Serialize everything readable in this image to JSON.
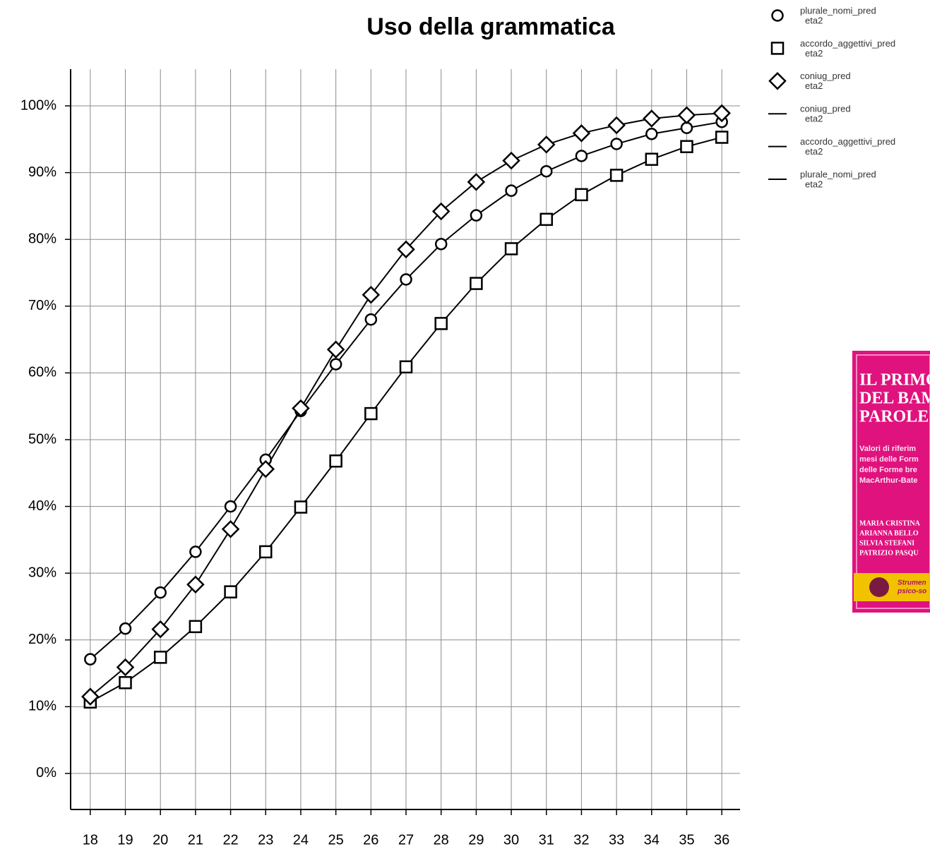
{
  "chart_data": {
    "type": "line",
    "title": "Uso della grammatica",
    "x": [
      18,
      19,
      20,
      21,
      22,
      23,
      24,
      25,
      26,
      27,
      28,
      29,
      30,
      31,
      32,
      33,
      34,
      35,
      36
    ],
    "xlim": [
      17.44,
      36.52
    ],
    "xticks": [
      18,
      19,
      20,
      21,
      22,
      23,
      24,
      25,
      26,
      27,
      28,
      29,
      30,
      31,
      32,
      33,
      34,
      35,
      36
    ],
    "ylim": [
      -5.4,
      105.5
    ],
    "yticks": [
      {
        "value": 0,
        "label": "0%"
      },
      {
        "value": 10,
        "label": "10%"
      },
      {
        "value": 20,
        "label": "20%"
      },
      {
        "value": 30,
        "label": "30%"
      },
      {
        "value": 40,
        "label": "40%"
      },
      {
        "value": 50,
        "label": "50%"
      },
      {
        "value": 60,
        "label": "60%"
      },
      {
        "value": 70,
        "label": "70%"
      },
      {
        "value": 80,
        "label": "80%"
      },
      {
        "value": 90,
        "label": "90%"
      },
      {
        "value": 100,
        "label": "100%"
      }
    ],
    "grid": true,
    "legend_sublabel": "eta2",
    "series": [
      {
        "name": "plurale_nomi_pred",
        "color": "#000000",
        "marker": "circle",
        "values": [
          17.1,
          21.7,
          27.1,
          33.2,
          40.0,
          47.0,
          54.3,
          61.3,
          68.0,
          74.0,
          79.3,
          83.6,
          87.3,
          90.2,
          92.5,
          94.3,
          95.8,
          96.7,
          97.6
        ]
      },
      {
        "name": "accordo_aggettivi_pred",
        "color": "#000000",
        "marker": "square",
        "values": [
          10.7,
          13.6,
          17.4,
          22.0,
          27.2,
          33.2,
          39.9,
          46.8,
          53.9,
          60.9,
          67.4,
          73.4,
          78.6,
          83.0,
          86.7,
          89.6,
          92.0,
          93.9,
          95.3
        ]
      },
      {
        "name": "coniug_pred",
        "color": "#000000",
        "marker": "diamond",
        "values": [
          11.5,
          15.9,
          21.6,
          28.3,
          36.6,
          45.6,
          54.7,
          63.5,
          71.7,
          78.5,
          84.2,
          88.6,
          91.8,
          94.2,
          95.9,
          97.1,
          98.1,
          98.6,
          98.9
        ]
      }
    ]
  },
  "cover": {
    "title_lines": [
      "IL PRIMO V",
      "DEL BAMB",
      "PAROLE E"
    ],
    "text_lines": [
      "Valori di riferim",
      "mesi delle Form",
      "delle Forme bre",
      "MacArthur-Bate"
    ],
    "authors": [
      "MARIA CRISTINA",
      "ARIANNA BELLO",
      "SILVIA STEFANI",
      "PATRIZIO PASQU"
    ],
    "footer": [
      "Strumen",
      "psico-so"
    ]
  }
}
